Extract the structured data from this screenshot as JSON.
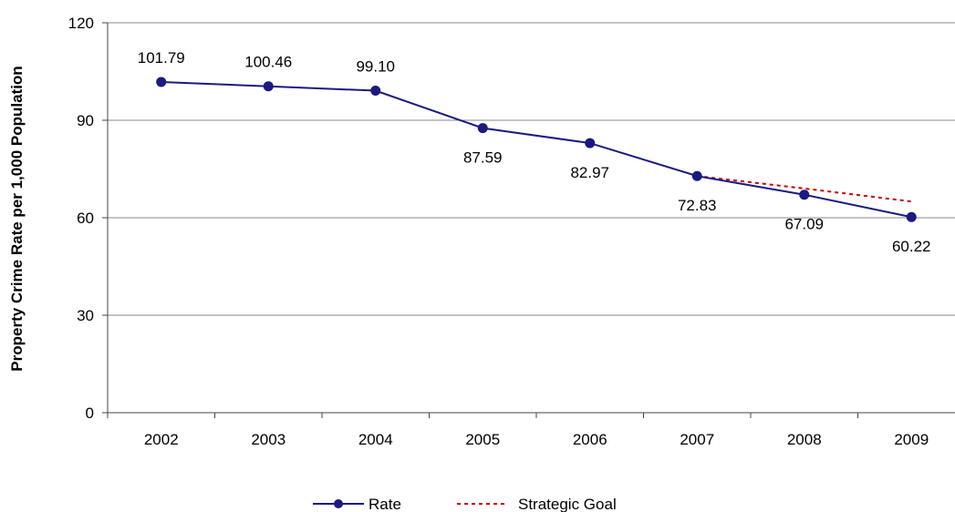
{
  "chart_data": {
    "type": "line",
    "title": "",
    "xlabel": "",
    "ylabel": "Property Crime Rate per 1,000 Population",
    "ylim": [
      0,
      120
    ],
    "yticks": [
      0,
      30,
      60,
      90,
      120
    ],
    "grid": "horizontal",
    "legend_position": "bottom",
    "categories": [
      "2002",
      "2003",
      "2004",
      "2005",
      "2006",
      "2007",
      "2008",
      "2009"
    ],
    "series": [
      {
        "name": "Rate",
        "color": "#1a1a80",
        "style": "solid-with-markers",
        "values": [
          101.79,
          100.46,
          99.1,
          87.59,
          82.97,
          72.83,
          67.09,
          60.22
        ],
        "labels": [
          "101.79",
          "100.46",
          "99.10",
          "87.59",
          "82.97",
          "72.83",
          "67.09",
          "60.22"
        ]
      },
      {
        "name": "Strategic Goal",
        "color": "#cc0000",
        "style": "dotted",
        "x": [
          "2007",
          "2008",
          "2009"
        ],
        "values": [
          72.83,
          69.0,
          65.0
        ]
      }
    ]
  }
}
